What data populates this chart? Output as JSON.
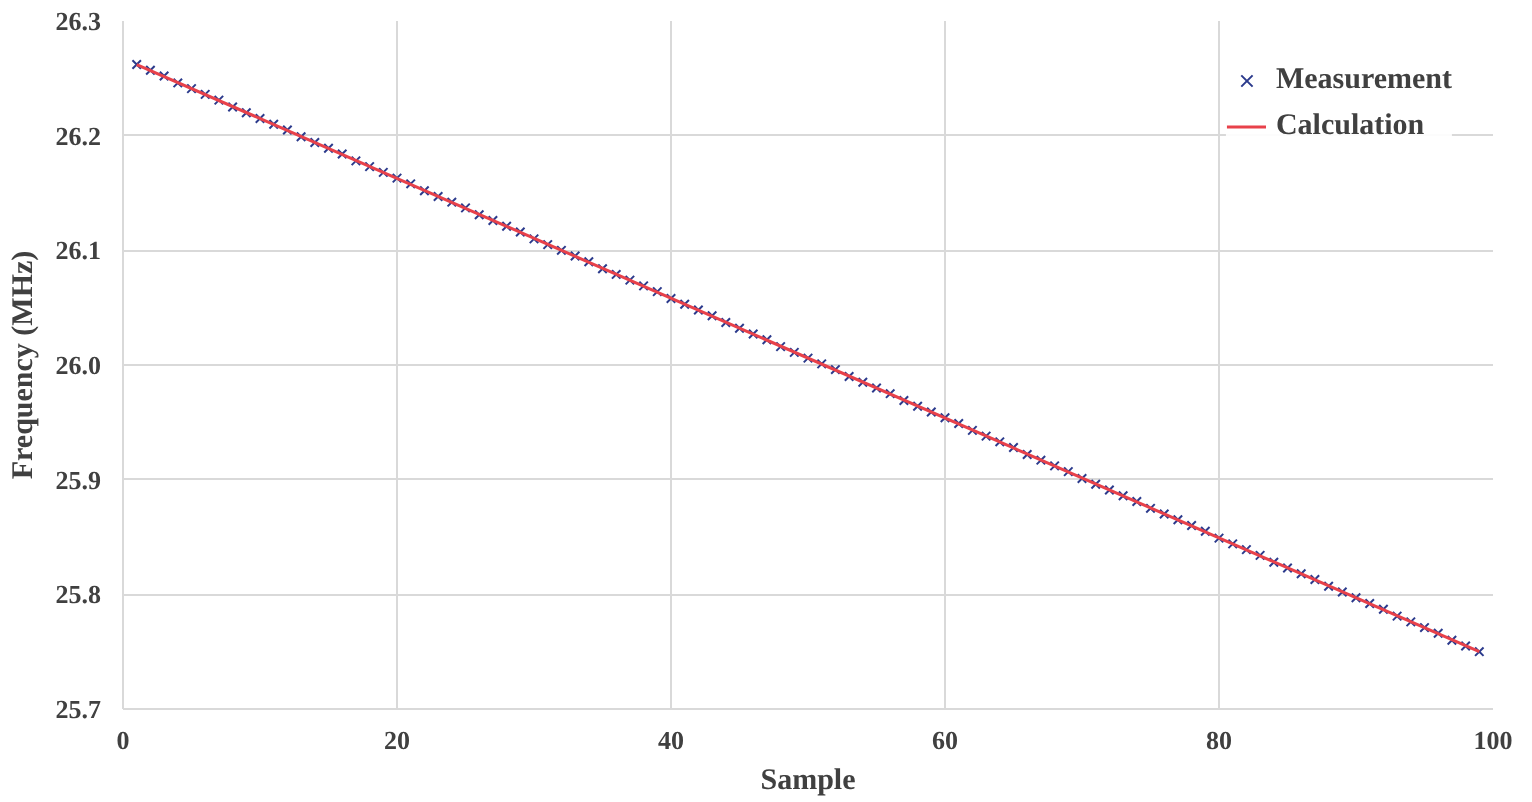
{
  "chart_data": {
    "type": "scatter",
    "xlabel": "Sample",
    "ylabel": "Frequency (MHz)",
    "xlim": [
      0,
      100
    ],
    "xticks": [
      0,
      20,
      40,
      60,
      80,
      100
    ],
    "ylim": [
      25.7,
      26.3
    ],
    "yticks": [
      {
        "value": 25.7,
        "label": "25.7"
      },
      {
        "value": 25.8,
        "label": "25.8"
      },
      {
        "value": 25.9,
        "label": "25.9"
      },
      {
        "value": 26.0,
        "label": "26.0"
      },
      {
        "value": 26.1,
        "label": "26.1"
      },
      {
        "value": 26.2,
        "label": "26.2"
      },
      {
        "value": 26.3,
        "label": "26.3"
      }
    ],
    "grid": true,
    "legend": "top right",
    "series": [
      {
        "name": "Measurement",
        "marker": "cross",
        "color": "#2b3a8c",
        "x": [
          1,
          2,
          3,
          4,
          5,
          6,
          7,
          8,
          9,
          10,
          11,
          12,
          13,
          14,
          15,
          16,
          17,
          18,
          19,
          20,
          21,
          22,
          23,
          24,
          25,
          26,
          27,
          28,
          29,
          30,
          31,
          32,
          33,
          34,
          35,
          36,
          37,
          38,
          39,
          40,
          41,
          42,
          43,
          44,
          45,
          46,
          47,
          48,
          49,
          50,
          51,
          52,
          53,
          54,
          55,
          56,
          57,
          58,
          59,
          60,
          61,
          62,
          63,
          64,
          65,
          66,
          67,
          68,
          69,
          70,
          71,
          72,
          73,
          74,
          75,
          76,
          77,
          78,
          79,
          80,
          81,
          82,
          83,
          84,
          85,
          86,
          87,
          88,
          89,
          90,
          91,
          92,
          93,
          94,
          95,
          96,
          97,
          98,
          99
        ],
        "values": [
          26.262,
          26.257,
          26.252,
          26.246,
          26.241,
          26.236,
          26.231,
          26.225,
          26.22,
          26.215,
          26.21,
          26.205,
          26.199,
          26.194,
          26.189,
          26.184,
          26.178,
          26.173,
          26.168,
          26.163,
          26.158,
          26.152,
          26.147,
          26.142,
          26.137,
          26.131,
          26.126,
          26.121,
          26.116,
          26.11,
          26.105,
          26.1,
          26.095,
          26.09,
          26.084,
          26.079,
          26.074,
          26.069,
          26.064,
          26.058,
          26.053,
          26.048,
          26.043,
          26.037,
          26.032,
          26.027,
          26.022,
          26.016,
          26.011,
          26.006,
          26.001,
          25.996,
          25.99,
          25.985,
          25.98,
          25.975,
          25.969,
          25.964,
          25.959,
          25.954,
          25.949,
          25.943,
          25.938,
          25.933,
          25.928,
          25.922,
          25.917,
          25.912,
          25.907,
          25.901,
          25.896,
          25.891,
          25.886,
          25.881,
          25.875,
          25.87,
          25.865,
          25.86,
          25.855,
          25.849,
          25.844,
          25.839,
          25.834,
          25.828,
          25.823,
          25.818,
          25.813,
          25.807,
          25.802,
          25.797,
          25.792,
          25.787,
          25.781,
          25.776,
          25.771,
          25.766,
          25.76,
          25.755,
          25.75
        ]
      },
      {
        "name": "Calculation",
        "type": "line",
        "line_style": "solid",
        "color": "#e8414a",
        "x": [
          1,
          99
        ],
        "values": [
          26.262,
          25.75
        ]
      }
    ]
  }
}
